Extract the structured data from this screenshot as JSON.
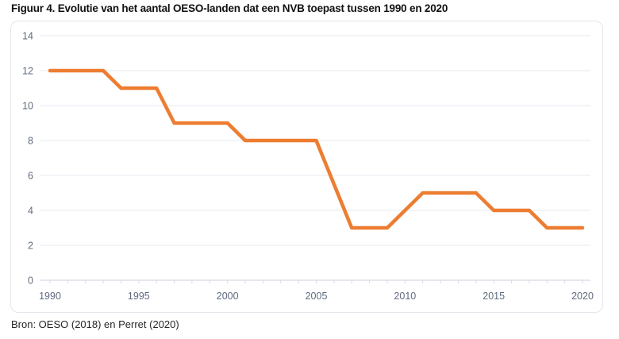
{
  "page": {
    "title": "Figuur 4. Evolutie van het aantal OESO-landen dat een NVB toepast tussen 1990 en 2020",
    "source": "Bron: OESO (2018) en Perret (2020)"
  },
  "colors": {
    "line": "#ED7D31",
    "grid": "#EAEDF3",
    "axis": "#D8DBE3",
    "tick_label": "#5F6B80",
    "frame_border": "#E4E6EC"
  },
  "chart_data": {
    "type": "line",
    "title": "Figuur 4. Evolutie van het aantal OESO-landen dat een NVB toepast tussen 1990 en 2020",
    "xlabel": "",
    "ylabel": "",
    "xlim": [
      1990,
      2020
    ],
    "ylim": [
      0,
      14
    ],
    "x_ticks": [
      1990,
      1995,
      2000,
      2005,
      2010,
      2015,
      2020
    ],
    "x_minor_tick_step": 1,
    "y_ticks": [
      0,
      2,
      4,
      6,
      8,
      10,
      12,
      14
    ],
    "grid": "horizontal",
    "legend": "none",
    "markers": "none",
    "series": [
      {
        "points": [
          [
            1990,
            12
          ],
          [
            1993,
            12
          ],
          [
            1994,
            11
          ],
          [
            1996,
            11
          ],
          [
            1997,
            9
          ],
          [
            2000,
            9
          ],
          [
            2001,
            8
          ],
          [
            2005,
            8
          ],
          [
            2007,
            3
          ],
          [
            2009,
            3
          ],
          [
            2011,
            5
          ],
          [
            2014,
            5
          ],
          [
            2015,
            4
          ],
          [
            2017,
            4
          ],
          [
            2018,
            3
          ],
          [
            2020,
            3
          ]
        ]
      }
    ]
  }
}
